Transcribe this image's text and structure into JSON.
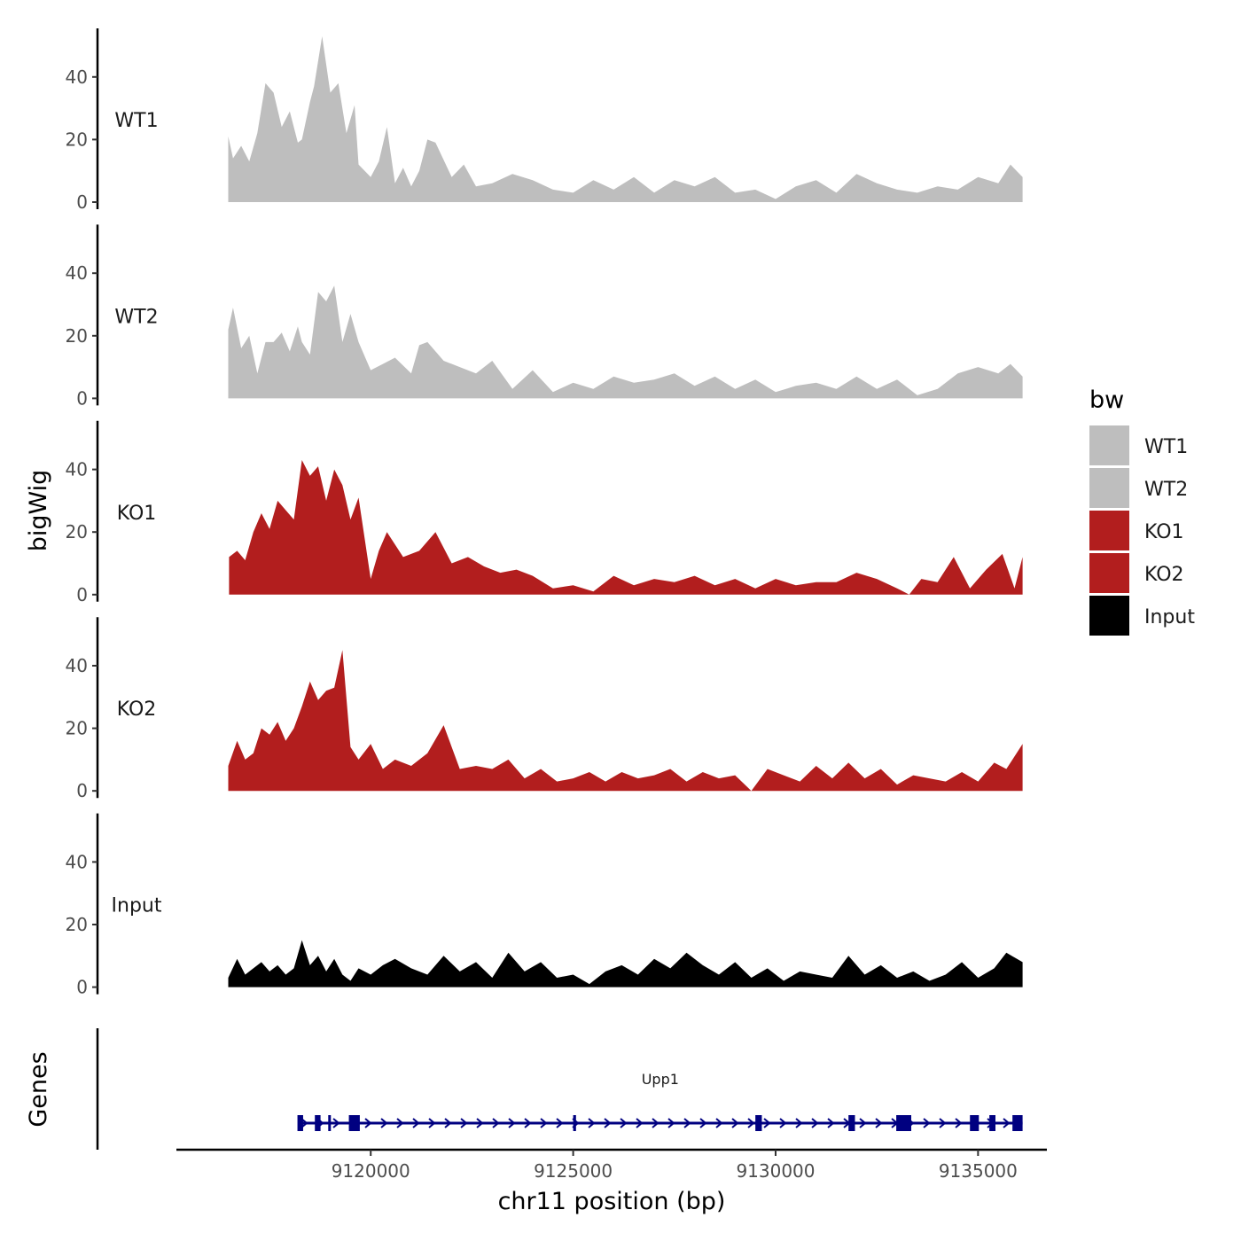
{
  "chart_data": {
    "type": "area",
    "ylabel": "bigWig",
    "xlabel": "chr11 position (bp)",
    "x_range": [
      9115200,
      9136700
    ],
    "x_ticks": [
      9120000,
      9125000,
      9130000,
      9135000
    ],
    "x_tick_labels": [
      "9120000",
      "9125000",
      "9130000",
      "9135000"
    ],
    "ylim": [
      0,
      55
    ],
    "y_ticks": [
      0,
      20,
      40
    ],
    "y_tick_labels": [
      "0",
      "20",
      "40"
    ],
    "legend": {
      "title": "bw",
      "position": "right",
      "entries": [
        {
          "label": "WT1",
          "color": "#bebebe"
        },
        {
          "label": "WT2",
          "color": "#bebebe"
        },
        {
          "label": "KO1",
          "color": "#b21e1e"
        },
        {
          "label": "KO2",
          "color": "#b21e1e"
        },
        {
          "label": "Input",
          "color": "#000000"
        }
      ]
    },
    "series": [
      {
        "name": "WT1",
        "color": "#bebebe",
        "x": [
          9116480,
          9116600,
          9116800,
          9117000,
          9117200,
          9117400,
          9117600,
          9117800,
          9118000,
          9118200,
          9118300,
          9118500,
          9118600,
          9118800,
          9119000,
          9119200,
          9119400,
          9119600,
          9119700,
          9120000,
          9120200,
          9120400,
          9120600,
          9120800,
          9121000,
          9121200,
          9121400,
          9121600,
          9122000,
          9122300,
          9122600,
          9123000,
          9123500,
          9124000,
          9124500,
          9125000,
          9125500,
          9126000,
          9126500,
          9127000,
          9127500,
          9128000,
          9128500,
          9129000,
          9129500,
          9130000,
          9130500,
          9131000,
          9131500,
          9132000,
          9132500,
          9133000,
          9133500,
          9134000,
          9134500,
          9135000,
          9135500,
          9135800,
          9136100
        ],
        "values": [
          21,
          14,
          18,
          13,
          22,
          38,
          35,
          24,
          29,
          19,
          20,
          32,
          37,
          53,
          35,
          38,
          22,
          31,
          12,
          8,
          13,
          24,
          6,
          11,
          5,
          10,
          20,
          19,
          8,
          12,
          5,
          6,
          9,
          7,
          4,
          3,
          7,
          4,
          8,
          3,
          7,
          5,
          8,
          3,
          4,
          1,
          5,
          7,
          3,
          9,
          6,
          4,
          3,
          5,
          4,
          8,
          6,
          12,
          8
        ]
      },
      {
        "name": "WT2",
        "color": "#bebebe",
        "x": [
          9116480,
          9116600,
          9116800,
          9117000,
          9117200,
          9117400,
          9117600,
          9117800,
          9118000,
          9118200,
          9118300,
          9118500,
          9118700,
          9118900,
          9119100,
          9119300,
          9119500,
          9119700,
          9120000,
          9120300,
          9120600,
          9121000,
          9121200,
          9121400,
          9121800,
          9122200,
          9122600,
          9123000,
          9123500,
          9124000,
          9124500,
          9125000,
          9125500,
          9126000,
          9126500,
          9127000,
          9127500,
          9128000,
          9128500,
          9129000,
          9129500,
          9130000,
          9130500,
          9131000,
          9131500,
          9132000,
          9132500,
          9133000,
          9133500,
          9134000,
          9134500,
          9135000,
          9135500,
          9135800,
          9136100
        ],
        "values": [
          22,
          29,
          16,
          20,
          8,
          18,
          18,
          21,
          15,
          23,
          18,
          14,
          34,
          31,
          36,
          18,
          27,
          18,
          9,
          11,
          13,
          8,
          17,
          18,
          12,
          10,
          8,
          12,
          3,
          9,
          2,
          5,
          3,
          7,
          5,
          6,
          8,
          4,
          7,
          3,
          6,
          2,
          4,
          5,
          3,
          7,
          3,
          6,
          1,
          3,
          8,
          10,
          8,
          11,
          7
        ]
      },
      {
        "name": "KO1",
        "color": "#b21e1e",
        "x": [
          9116500,
          9116700,
          9116900,
          9117100,
          9117300,
          9117500,
          9117700,
          9117900,
          9118100,
          9118300,
          9118500,
          9118700,
          9118900,
          9119100,
          9119300,
          9119500,
          9119700,
          9120000,
          9120200,
          9120400,
          9120800,
          9121200,
          9121600,
          9122000,
          9122400,
          9122800,
          9123200,
          9123600,
          9124000,
          9124500,
          9125000,
          9125500,
          9126000,
          9126500,
          9127000,
          9127500,
          9128000,
          9128500,
          9129000,
          9129500,
          9130000,
          9130500,
          9131000,
          9131500,
          9132000,
          9132500,
          9133000,
          9133300,
          9133600,
          9134000,
          9134400,
          9134800,
          9135200,
          9135600,
          9135900,
          9136100
        ],
        "values": [
          12,
          14,
          11,
          20,
          26,
          21,
          30,
          27,
          24,
          43,
          38,
          41,
          30,
          40,
          35,
          24,
          31,
          5,
          14,
          20,
          12,
          14,
          20,
          10,
          12,
          9,
          7,
          8,
          6,
          2,
          3,
          1,
          6,
          3,
          5,
          4,
          6,
          3,
          5,
          2,
          5,
          3,
          4,
          4,
          7,
          5,
          2,
          0,
          5,
          4,
          12,
          2,
          8,
          13,
          2,
          12
        ]
      },
      {
        "name": "KO2",
        "color": "#b21e1e",
        "x": [
          9116480,
          9116700,
          9116900,
          9117100,
          9117300,
          9117500,
          9117700,
          9117900,
          9118100,
          9118300,
          9118500,
          9118700,
          9118900,
          9119100,
          9119300,
          9119500,
          9119700,
          9120000,
          9120300,
          9120600,
          9121000,
          9121400,
          9121800,
          9122200,
          9122600,
          9123000,
          9123400,
          9123800,
          9124200,
          9124600,
          9125000,
          9125400,
          9125800,
          9126200,
          9126600,
          9127000,
          9127400,
          9127800,
          9128200,
          9128600,
          9129000,
          9129400,
          9129800,
          9130200,
          9130600,
          9131000,
          9131400,
          9131800,
          9132200,
          9132600,
          9133000,
          9133400,
          9133800,
          9134200,
          9134600,
          9135000,
          9135400,
          9135700,
          9136100
        ],
        "values": [
          8,
          16,
          10,
          12,
          20,
          18,
          22,
          16,
          20,
          27,
          35,
          29,
          32,
          33,
          45,
          14,
          10,
          15,
          7,
          10,
          8,
          12,
          21,
          7,
          8,
          7,
          10,
          4,
          7,
          3,
          4,
          6,
          3,
          6,
          4,
          5,
          7,
          3,
          6,
          4,
          5,
          0,
          7,
          5,
          3,
          8,
          4,
          9,
          4,
          7,
          2,
          5,
          4,
          3,
          6,
          3,
          9,
          7,
          15
        ]
      },
      {
        "name": "Input",
        "color": "#000000",
        "x": [
          9116480,
          9116700,
          9116900,
          9117100,
          9117300,
          9117500,
          9117700,
          9117900,
          9118100,
          9118300,
          9118500,
          9118700,
          9118900,
          9119100,
          9119300,
          9119500,
          9119700,
          9120000,
          9120300,
          9120600,
          9121000,
          9121400,
          9121800,
          9122200,
          9122600,
          9123000,
          9123400,
          9123800,
          9124200,
          9124600,
          9125000,
          9125400,
          9125800,
          9126200,
          9126600,
          9127000,
          9127400,
          9127800,
          9128200,
          9128600,
          9129000,
          9129400,
          9129800,
          9130200,
          9130600,
          9131000,
          9131400,
          9131800,
          9132200,
          9132600,
          9133000,
          9133400,
          9133800,
          9134200,
          9134600,
          9135000,
          9135400,
          9135700,
          9136100
        ],
        "values": [
          3,
          9,
          4,
          6,
          8,
          5,
          7,
          4,
          6,
          15,
          7,
          10,
          5,
          9,
          4,
          2,
          6,
          4,
          7,
          9,
          6,
          4,
          10,
          5,
          8,
          3,
          11,
          5,
          8,
          3,
          4,
          1,
          5,
          7,
          4,
          9,
          6,
          11,
          7,
          4,
          8,
          3,
          6,
          2,
          5,
          4,
          3,
          10,
          4,
          7,
          3,
          5,
          2,
          4,
          8,
          3,
          6,
          11,
          8
        ]
      }
    ],
    "genes": {
      "track_label": "Genes",
      "name": "Upp1",
      "color": "#000080",
      "start": 9118200,
      "end": 9136100,
      "strand": "+",
      "exons": [
        [
          9118190,
          9118330
        ],
        [
          9118620,
          9118760
        ],
        [
          9118950,
          9119000
        ],
        [
          9119460,
          9119730
        ],
        [
          9125000,
          9125070
        ],
        [
          9129500,
          9129660
        ],
        [
          9131800,
          9131960
        ],
        [
          9132980,
          9133350
        ],
        [
          9134800,
          9135020
        ],
        [
          9135280,
          9135430
        ],
        [
          9135850,
          9136100
        ]
      ]
    }
  }
}
